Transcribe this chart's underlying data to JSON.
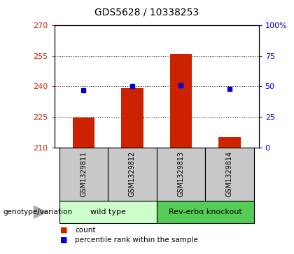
{
  "title": "GDS5628 / 10338253",
  "samples": [
    "GSM1329811",
    "GSM1329812",
    "GSM1329813",
    "GSM1329814"
  ],
  "bar_values": [
    224.5,
    239.0,
    256.0,
    215.0
  ],
  "percentile_values": [
    47,
    50,
    51,
    48
  ],
  "ylim_left": [
    210,
    270
  ],
  "ylim_right": [
    0,
    100
  ],
  "yticks_left": [
    210,
    225,
    240,
    255,
    270
  ],
  "yticks_right": [
    0,
    25,
    50,
    75,
    100
  ],
  "bar_color": "#cc2200",
  "marker_color": "#0000cc",
  "bar_bottom": 210,
  "groups": [
    {
      "label": "wild type",
      "indices": [
        0,
        1
      ],
      "color": "#ccffcc"
    },
    {
      "label": "Rev-erbα knockout",
      "indices": [
        2,
        3
      ],
      "color": "#55cc55"
    }
  ],
  "legend_items": [
    {
      "label": "count",
      "color": "#cc2200"
    },
    {
      "label": "percentile rank within the sample",
      "color": "#0000cc"
    }
  ],
  "genotype_label": "genotype/variation",
  "title_fontsize": 10,
  "sample_box_color": "#c8c8c8",
  "bar_width": 0.45
}
